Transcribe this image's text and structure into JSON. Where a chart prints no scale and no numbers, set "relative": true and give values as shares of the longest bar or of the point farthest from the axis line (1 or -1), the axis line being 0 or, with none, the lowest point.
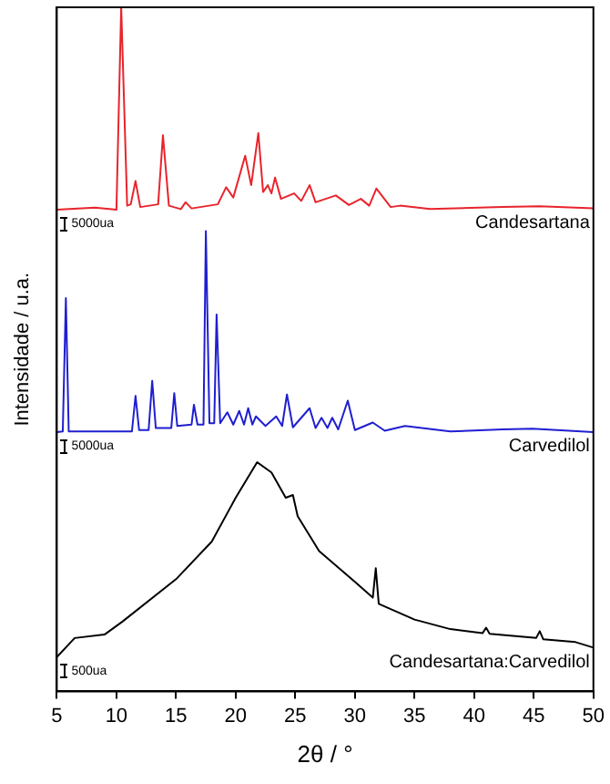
{
  "chart_data": {
    "type": "line",
    "relative": true,
    "xlabel": "2θ / °",
    "ylabel": "Intensidade / u.a.",
    "xlim": [
      5,
      50
    ],
    "xticks": [
      5,
      10,
      15,
      20,
      25,
      30,
      35,
      40,
      45,
      50
    ],
    "legend": false,
    "grid": false,
    "marker": "none",
    "line_style": "solid",
    "annotations": [
      "5000ua",
      "5000ua",
      "500ua"
    ],
    "series": [
      {
        "name": "Candesartana",
        "color": "#e8242c",
        "x": [
          5,
          8.2,
          10.0,
          10.4,
          10.9,
          11.2,
          11.6,
          12.0,
          13.5,
          13.9,
          14.4,
          15.4,
          15.8,
          16.3,
          18.5,
          19.2,
          19.8,
          20.8,
          21.3,
          21.9,
          22.3,
          22.7,
          23.0,
          23.3,
          23.8,
          24.9,
          25.5,
          26.2,
          26.7,
          28.4,
          29.5,
          30.5,
          31.2,
          31.8,
          33.0,
          33.8,
          36.3,
          42.4,
          45.5,
          50
        ],
        "values": [
          0.704,
          0.707,
          0.704,
          1.0,
          0.71,
          0.712,
          0.746,
          0.708,
          0.712,
          0.813,
          0.71,
          0.705,
          0.715,
          0.706,
          0.712,
          0.737,
          0.722,
          0.783,
          0.74,
          0.816,
          0.73,
          0.74,
          0.728,
          0.751,
          0.72,
          0.728,
          0.717,
          0.74,
          0.715,
          0.725,
          0.711,
          0.72,
          0.71,
          0.735,
          0.708,
          0.71,
          0.705,
          0.708,
          0.709,
          0.706
        ]
      },
      {
        "name": "Carvedilol",
        "color": "#1f1fd0",
        "x": [
          5,
          5.5,
          5.76,
          6.0,
          11.3,
          11.6,
          11.9,
          12.7,
          13.0,
          13.3,
          14.6,
          14.85,
          15.1,
          16.3,
          16.5,
          16.8,
          17.3,
          17.5,
          17.8,
          18.2,
          18.4,
          18.7,
          19.3,
          19.8,
          20.3,
          20.7,
          21.05,
          21.4,
          21.7,
          22.5,
          23.4,
          23.9,
          24.3,
          24.8,
          26.2,
          26.7,
          27.2,
          27.7,
          28.1,
          28.6,
          29.4,
          30,
          31.5,
          32.5,
          34.2,
          38,
          42.4,
          44.9,
          50
        ],
        "values": [
          0.379,
          0.38,
          0.575,
          0.38,
          0.38,
          0.432,
          0.382,
          0.382,
          0.454,
          0.385,
          0.385,
          0.436,
          0.388,
          0.39,
          0.419,
          0.39,
          0.39,
          0.673,
          0.392,
          0.392,
          0.551,
          0.392,
          0.408,
          0.39,
          0.41,
          0.39,
          0.414,
          0.39,
          0.402,
          0.388,
          0.402,
          0.388,
          0.434,
          0.386,
          0.414,
          0.385,
          0.4,
          0.385,
          0.4,
          0.383,
          0.425,
          0.382,
          0.393,
          0.381,
          0.388,
          0.38,
          0.383,
          0.384,
          0.379
        ]
      },
      {
        "name": "Candesartana:Carvedilol",
        "color": "#000000",
        "x": [
          5,
          6.5,
          9,
          10.5,
          15,
          18,
          20,
          21.8,
          23,
          24.2,
          24.8,
          25.2,
          27,
          30,
          31.5,
          31.75,
          32,
          35,
          38,
          40.7,
          41,
          41.3,
          45.2,
          45.5,
          45.8,
          48.5,
          50
        ],
        "values": [
          0.05,
          0.078,
          0.083,
          0.102,
          0.164,
          0.219,
          0.283,
          0.335,
          0.32,
          0.283,
          0.287,
          0.256,
          0.205,
          0.16,
          0.137,
          0.18,
          0.128,
          0.105,
          0.091,
          0.085,
          0.093,
          0.084,
          0.078,
          0.088,
          0.076,
          0.072,
          0.064
        ]
      }
    ]
  }
}
